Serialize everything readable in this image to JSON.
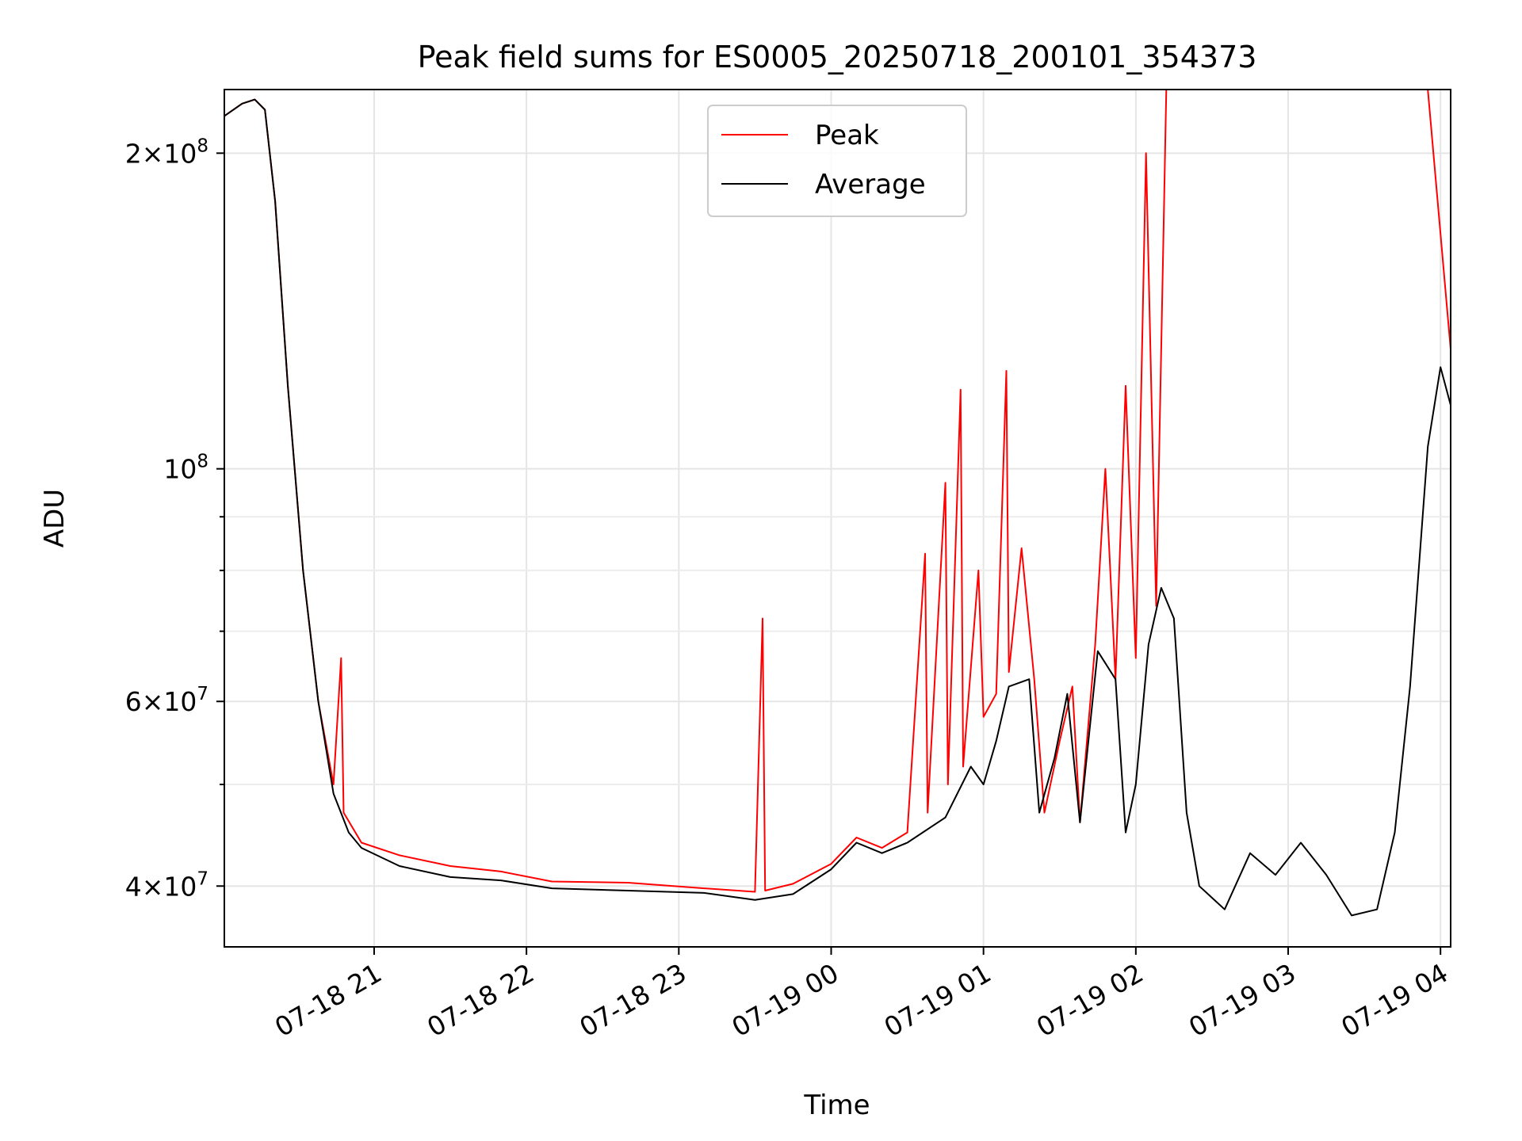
{
  "chart_data": {
    "type": "line",
    "title": "Peak field sums for ES0005_20250718_200101_354373",
    "xlabel": "Time",
    "ylabel": "ADU",
    "y_scale": "log",
    "ylim": [
      35000000,
      230000000
    ],
    "xlim": [
      "2025-07-18 20:01",
      "2025-07-19 04:04"
    ],
    "grid": true,
    "legend_position": "top-center",
    "x_ticks": [
      {
        "value": "2025-07-18 21:00",
        "label": "07-18 21"
      },
      {
        "value": "2025-07-18 22:00",
        "label": "07-18 22"
      },
      {
        "value": "2025-07-18 23:00",
        "label": "07-18 23"
      },
      {
        "value": "2025-07-19 00:00",
        "label": "07-19 00"
      },
      {
        "value": "2025-07-19 01:00",
        "label": "07-19 01"
      },
      {
        "value": "2025-07-19 02:00",
        "label": "07-19 02"
      },
      {
        "value": "2025-07-19 03:00",
        "label": "07-19 03"
      },
      {
        "value": "2025-07-19 04:00",
        "label": "07-19 04"
      }
    ],
    "y_major_ticks": [
      {
        "value": 40000000,
        "mantissa": "4",
        "exponent": "7"
      },
      {
        "value": 60000000,
        "mantissa": "6",
        "exponent": "7"
      },
      {
        "value": 100000000,
        "mantissa": "",
        "exponent": "8"
      },
      {
        "value": 200000000,
        "mantissa": "2",
        "exponent": "8"
      }
    ],
    "y_minor_ticks": [
      50000000,
      70000000,
      80000000,
      90000000
    ],
    "series": [
      {
        "name": "Peak",
        "color": "#ff0000",
        "points": [
          [
            "2025-07-18 20:01",
            217000000
          ],
          [
            "2025-07-18 20:08",
            223000000
          ],
          [
            "2025-07-18 20:13",
            225000000
          ],
          [
            "2025-07-18 20:17",
            220000000
          ],
          [
            "2025-07-18 20:21",
            180000000
          ],
          [
            "2025-07-18 20:26",
            120000000
          ],
          [
            "2025-07-18 20:32",
            80000000
          ],
          [
            "2025-07-18 20:38",
            60000000
          ],
          [
            "2025-07-18 20:44",
            50000000
          ],
          [
            "2025-07-18 20:47",
            66000000
          ],
          [
            "2025-07-18 20:48",
            47000000
          ],
          [
            "2025-07-18 20:55",
            44000000
          ],
          [
            "2025-07-18 21:10",
            42800000
          ],
          [
            "2025-07-18 21:30",
            41800000
          ],
          [
            "2025-07-18 21:50",
            41300000
          ],
          [
            "2025-07-18 22:10",
            40400000
          ],
          [
            "2025-07-18 22:40",
            40300000
          ],
          [
            "2025-07-18 23:10",
            39800000
          ],
          [
            "2025-07-18 23:30",
            39500000
          ],
          [
            "2025-07-18 23:33",
            72000000
          ],
          [
            "2025-07-18 23:34",
            39600000
          ],
          [
            "2025-07-18 23:45",
            40200000
          ],
          [
            "2025-07-19 00:00",
            42000000
          ],
          [
            "2025-07-19 00:10",
            44500000
          ],
          [
            "2025-07-19 00:20",
            43500000
          ],
          [
            "2025-07-19 00:30",
            45000000
          ],
          [
            "2025-07-19 00:37",
            83000000
          ],
          [
            "2025-07-19 00:38",
            47000000
          ],
          [
            "2025-07-19 00:45",
            97000000
          ],
          [
            "2025-07-19 00:46",
            50000000
          ],
          [
            "2025-07-19 00:51",
            119000000
          ],
          [
            "2025-07-19 00:52",
            52000000
          ],
          [
            "2025-07-19 00:58",
            80000000
          ],
          [
            "2025-07-19 01:00",
            58000000
          ],
          [
            "2025-07-19 01:05",
            61000000
          ],
          [
            "2025-07-19 01:09",
            124000000
          ],
          [
            "2025-07-19 01:10",
            64000000
          ],
          [
            "2025-07-19 01:15",
            84000000
          ],
          [
            "2025-07-19 01:20",
            63000000
          ],
          [
            "2025-07-19 01:24",
            47000000
          ],
          [
            "2025-07-19 01:30",
            55000000
          ],
          [
            "2025-07-19 01:35",
            62000000
          ],
          [
            "2025-07-19 01:38",
            46000000
          ],
          [
            "2025-07-19 01:44",
            68000000
          ],
          [
            "2025-07-19 01:48",
            100000000
          ],
          [
            "2025-07-19 01:52",
            63000000
          ],
          [
            "2025-07-19 01:56",
            120000000
          ],
          [
            "2025-07-19 02:00",
            66000000
          ],
          [
            "2025-07-19 02:04",
            200000000
          ],
          [
            "2025-07-19 02:08",
            74000000
          ],
          [
            "2025-07-19 02:12",
            230000000
          ],
          [
            "2025-07-19 02:20",
            230000000
          ],
          [
            "2025-07-19 02:40",
            230000000
          ],
          [
            "2025-07-19 03:00",
            230000000
          ],
          [
            "2025-07-19 03:20",
            230000000
          ],
          [
            "2025-07-19 03:40",
            230000000
          ],
          [
            "2025-07-19 03:55",
            230000000
          ],
          [
            "2025-07-19 04:04",
            130000000
          ]
        ]
      },
      {
        "name": "Average",
        "color": "#000000",
        "points": [
          [
            "2025-07-18 20:01",
            217000000
          ],
          [
            "2025-07-18 20:08",
            223000000
          ],
          [
            "2025-07-18 20:13",
            225000000
          ],
          [
            "2025-07-18 20:17",
            220000000
          ],
          [
            "2025-07-18 20:21",
            180000000
          ],
          [
            "2025-07-18 20:26",
            120000000
          ],
          [
            "2025-07-18 20:32",
            80000000
          ],
          [
            "2025-07-18 20:38",
            60000000
          ],
          [
            "2025-07-18 20:44",
            49000000
          ],
          [
            "2025-07-18 20:50",
            45000000
          ],
          [
            "2025-07-18 20:55",
            43500000
          ],
          [
            "2025-07-18 21:10",
            41800000
          ],
          [
            "2025-07-18 21:30",
            40800000
          ],
          [
            "2025-07-18 21:50",
            40500000
          ],
          [
            "2025-07-18 22:10",
            39800000
          ],
          [
            "2025-07-18 22:40",
            39600000
          ],
          [
            "2025-07-18 23:10",
            39400000
          ],
          [
            "2025-07-18 23:30",
            38800000
          ],
          [
            "2025-07-18 23:45",
            39300000
          ],
          [
            "2025-07-19 00:00",
            41500000
          ],
          [
            "2025-07-19 00:10",
            44000000
          ],
          [
            "2025-07-19 00:20",
            43000000
          ],
          [
            "2025-07-19 00:30",
            44000000
          ],
          [
            "2025-07-19 00:45",
            46500000
          ],
          [
            "2025-07-19 00:55",
            52000000
          ],
          [
            "2025-07-19 01:00",
            50000000
          ],
          [
            "2025-07-19 01:05",
            55000000
          ],
          [
            "2025-07-19 01:10",
            62000000
          ],
          [
            "2025-07-19 01:18",
            63000000
          ],
          [
            "2025-07-19 01:22",
            47000000
          ],
          [
            "2025-07-19 01:28",
            53000000
          ],
          [
            "2025-07-19 01:33",
            61000000
          ],
          [
            "2025-07-19 01:38",
            46000000
          ],
          [
            "2025-07-19 01:45",
            67000000
          ],
          [
            "2025-07-19 01:52",
            63000000
          ],
          [
            "2025-07-19 01:56",
            45000000
          ],
          [
            "2025-07-19 02:00",
            50000000
          ],
          [
            "2025-07-19 02:05",
            68000000
          ],
          [
            "2025-07-19 02:10",
            77000000
          ],
          [
            "2025-07-19 02:15",
            72000000
          ],
          [
            "2025-07-19 02:20",
            47000000
          ],
          [
            "2025-07-19 02:25",
            40000000
          ],
          [
            "2025-07-19 02:35",
            38000000
          ],
          [
            "2025-07-19 02:45",
            43000000
          ],
          [
            "2025-07-19 02:55",
            41000000
          ],
          [
            "2025-07-19 03:05",
            44000000
          ],
          [
            "2025-07-19 03:15",
            41000000
          ],
          [
            "2025-07-19 03:25",
            37500000
          ],
          [
            "2025-07-19 03:35",
            38000000
          ],
          [
            "2025-07-19 03:42",
            45000000
          ],
          [
            "2025-07-19 03:48",
            62000000
          ],
          [
            "2025-07-19 03:55",
            105000000
          ],
          [
            "2025-07-19 04:00",
            125000000
          ],
          [
            "2025-07-19 04:04",
            115000000
          ]
        ]
      }
    ]
  }
}
